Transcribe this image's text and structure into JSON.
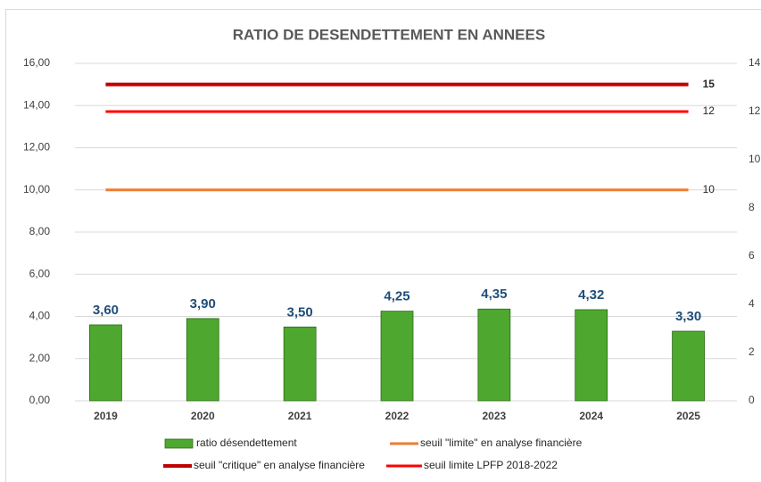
{
  "chart_data": {
    "type": "bar",
    "title": "RATIO DE DESENDETTEMENT EN ANNEES",
    "categories": [
      "2019",
      "2020",
      "2021",
      "2022",
      "2023",
      "2024",
      "2025"
    ],
    "series": [
      {
        "name": "ratio désendettement",
        "type": "bar",
        "color": "#4ea72e",
        "axis": "y",
        "values": [
          3.6,
          3.9,
          3.5,
          4.25,
          4.35,
          4.32,
          3.3
        ],
        "value_labels": [
          "3,60",
          "3,90",
          "3,50",
          "4,25",
          "4,35",
          "4,32",
          "3,30"
        ]
      },
      {
        "name": "seuil \"limite\" en analyse financière",
        "type": "line",
        "color": "#ed7d31",
        "axis": "y",
        "values": [
          10,
          10,
          10,
          10,
          10,
          10,
          10
        ],
        "value_labels": [
          null,
          null,
          null,
          null,
          null,
          null,
          "10"
        ]
      },
      {
        "name": "seuil \"critique\" en analyse financière",
        "type": "line",
        "color": "#c00000",
        "axis": "y",
        "values": [
          15,
          15,
          15,
          15,
          15,
          15,
          15
        ],
        "value_labels": [
          null,
          null,
          null,
          null,
          null,
          null,
          "15"
        ]
      },
      {
        "name": "seuil limite LPFP 2018-2022",
        "type": "line",
        "color": "#ff0000",
        "axis": "y2",
        "values": [
          12,
          12,
          12,
          12,
          12,
          12,
          12
        ],
        "value_labels": [
          null,
          null,
          null,
          null,
          null,
          null,
          "12"
        ]
      }
    ],
    "ylim": [
      0,
      16
    ],
    "yticks": [
      {
        "value": 0,
        "label": "0,00"
      },
      {
        "value": 2,
        "label": "2,00"
      },
      {
        "value": 4,
        "label": "4,00"
      },
      {
        "value": 6,
        "label": "6,00"
      },
      {
        "value": 8,
        "label": "8,00"
      },
      {
        "value": 10,
        "label": "10,00"
      },
      {
        "value": 12,
        "label": "12,00"
      },
      {
        "value": 14,
        "label": "14,00"
      },
      {
        "value": 16,
        "label": "16,00"
      }
    ],
    "y2lim": [
      0,
      14
    ],
    "y2ticks": [
      0,
      2,
      4,
      6,
      8,
      10,
      12,
      14
    ],
    "grid": true
  }
}
